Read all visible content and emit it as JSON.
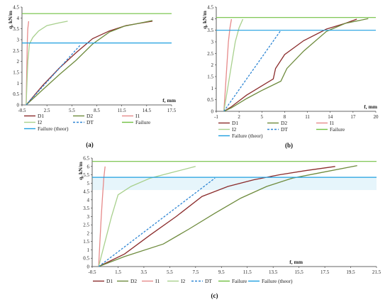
{
  "figure": {
    "panel_labels": [
      "(a)",
      "(b)",
      "(c)"
    ]
  },
  "colors": {
    "D1": "#8B2C2C",
    "D2": "#6E8B3D",
    "I1": "#E68A8A",
    "I2": "#A8D08D",
    "DT": "#2E86D4",
    "Failure": "#70C040",
    "Failure_theor": "#1E9FE0",
    "axis": "#333333",
    "band": "#D6EEF8"
  },
  "chart_data": [
    {
      "type": "line",
      "panel": "(a)",
      "ylabel": "q, kN/m",
      "xlabel": "f, mm",
      "xlim": [
        -0.5,
        17.5
      ],
      "ylim": [
        0,
        4.5
      ],
      "x_ticks": [
        "-0.5",
        "2.5",
        "5.5",
        "8.5",
        "11.5",
        "14.5",
        "17.5"
      ],
      "y_ticks": [
        "0",
        "0.5",
        "1",
        "1.5",
        "2",
        "2.5",
        "3",
        "3.5",
        "4",
        "4.5"
      ],
      "x_tick_values": [
        -0.5,
        2.5,
        5.5,
        8.5,
        11.5,
        14.5,
        17.5
      ],
      "y_tick_values": [
        0,
        0.5,
        1,
        1.5,
        2,
        2.5,
        3,
        3.5,
        4,
        4.5
      ],
      "legend_position": "bottom",
      "series": [
        {
          "name": "D1",
          "style": "solid",
          "x": [
            0,
            2,
            4,
            6,
            8,
            10,
            12,
            14,
            15.2
          ],
          "y": [
            0,
            0.9,
            1.7,
            2.4,
            3.05,
            3.4,
            3.65,
            3.78,
            3.85
          ]
        },
        {
          "name": "D2",
          "style": "solid",
          "x": [
            0,
            2,
            4,
            6,
            8,
            10,
            11.8,
            13.5,
            15.2
          ],
          "y": [
            0,
            0.7,
            1.4,
            2.05,
            2.8,
            3.35,
            3.62,
            3.75,
            3.88
          ]
        },
        {
          "name": "I1",
          "style": "solid",
          "x": [
            0,
            0.05,
            0.1,
            0.15,
            0.2,
            0.3
          ],
          "y": [
            0,
            1.0,
            2.0,
            3.0,
            3.5,
            3.85
          ]
        },
        {
          "name": "I2",
          "style": "solid",
          "x": [
            0,
            0.1,
            0.2,
            0.4,
            0.8,
            1.5,
            2.5,
            4.0,
            5.0
          ],
          "y": [
            0,
            1.0,
            2.0,
            2.8,
            3.1,
            3.4,
            3.65,
            3.78,
            3.85
          ]
        },
        {
          "name": "DT",
          "style": "dashed",
          "x": [
            0,
            6.5
          ],
          "y": [
            0,
            2.75
          ]
        },
        {
          "name": "Failure",
          "style": "solid",
          "x": [
            -0.5,
            17.5
          ],
          "y": [
            4.2,
            4.2
          ]
        },
        {
          "name": "Failure (theor)",
          "style": "solid",
          "x": [
            -0.5,
            17.5
          ],
          "y": [
            2.85,
            2.85
          ]
        }
      ],
      "legend_order": [
        "D1",
        "D2",
        "I1",
        "I2",
        "DT",
        "Failure",
        "Failure (theor)"
      ]
    },
    {
      "type": "line",
      "panel": "(b)",
      "ylabel": "q, kN/m",
      "xlabel": "f, mm",
      "xlim": [
        -1,
        20
      ],
      "ylim": [
        0,
        4.5
      ],
      "x_ticks": [
        "-1",
        "2",
        "5",
        "8",
        "11",
        "14",
        "17",
        "20"
      ],
      "y_ticks": [
        "0",
        "0.5",
        "1",
        "1.5",
        "2",
        "2.5",
        "3",
        "3.5",
        "4",
        "4.5"
      ],
      "x_tick_values": [
        -1,
        2,
        5,
        8,
        11,
        14,
        17,
        20
      ],
      "y_tick_values": [
        0,
        0.5,
        1,
        1.5,
        2,
        2.5,
        3,
        3.5,
        4,
        4.5
      ],
      "legend_position": "bottom",
      "series": [
        {
          "name": "D1",
          "style": "solid",
          "x": [
            0,
            1,
            3,
            5,
            6.5,
            6.8,
            8,
            10.5,
            13.5,
            16,
            17.5
          ],
          "y": [
            0,
            0.2,
            0.7,
            1.1,
            1.4,
            1.85,
            2.45,
            3.05,
            3.55,
            3.8,
            3.98
          ]
        },
        {
          "name": "D2",
          "style": "solid",
          "x": [
            0,
            1,
            3,
            5,
            7.5,
            8.3,
            10.5,
            13.5,
            16,
            19
          ],
          "y": [
            0,
            0.15,
            0.55,
            0.9,
            1.3,
            1.85,
            2.6,
            3.45,
            3.8,
            4.0
          ]
        },
        {
          "name": "I1",
          "style": "solid",
          "x": [
            0,
            0.2,
            0.4,
            0.6,
            0.8,
            1.0
          ],
          "y": [
            0,
            1.0,
            2.0,
            3.0,
            3.6,
            3.98
          ]
        },
        {
          "name": "I2",
          "style": "solid",
          "x": [
            0,
            0.5,
            1.0,
            1.5,
            2.0,
            2.5
          ],
          "y": [
            0,
            1.0,
            2.0,
            3.0,
            3.6,
            3.98
          ]
        },
        {
          "name": "DT",
          "style": "dashed",
          "x": [
            0,
            7.5
          ],
          "y": [
            0,
            3.5
          ]
        },
        {
          "name": "Failure",
          "style": "solid",
          "x": [
            -1,
            20
          ],
          "y": [
            4.05,
            4.05
          ]
        },
        {
          "name": "Failure (theor)",
          "style": "solid",
          "x": [
            -1,
            20
          ],
          "y": [
            3.5,
            3.5
          ]
        }
      ],
      "legend_order": [
        "D1",
        "D2",
        "I1",
        "I2",
        "DT",
        "Failure",
        "Failure (theor)"
      ]
    },
    {
      "type": "line",
      "panel": "(c)",
      "ylabel": "q, kN/m",
      "xlabel": "f, mm",
      "xlim": [
        -0.5,
        21.5
      ],
      "ylim": [
        0,
        6.5
      ],
      "x_ticks": [
        "-0.5",
        "1.5",
        "3.5",
        "5.5",
        "7.5",
        "9.5",
        "11.5",
        "13.5",
        "15.5",
        "17.5",
        "19.5",
        "21.5"
      ],
      "y_ticks": [
        "0",
        "0.5",
        "1",
        "1.5",
        "2",
        "2.5",
        "3",
        "3.5",
        "4",
        "4.5",
        "5",
        "5.5",
        "6",
        "6.5"
      ],
      "x_tick_values": [
        -0.5,
        1.5,
        3.5,
        5.5,
        7.5,
        9.5,
        11.5,
        13.5,
        15.5,
        17.5,
        19.5,
        21.5
      ],
      "y_tick_values": [
        0,
        0.5,
        1,
        1.5,
        2,
        2.5,
        3,
        3.5,
        4,
        4.5,
        5,
        5.5,
        6,
        6.5
      ],
      "legend_position": "bottom",
      "series": [
        {
          "name": "D1",
          "style": "solid",
          "x": [
            0,
            2,
            4,
            6,
            8,
            10,
            12,
            14,
            16,
            18.3
          ],
          "y": [
            0,
            0.75,
            1.9,
            3.0,
            4.2,
            4.8,
            5.2,
            5.5,
            5.75,
            6.0
          ]
        },
        {
          "name": "D2",
          "style": "solid",
          "x": [
            0,
            2,
            5,
            7,
            9,
            11,
            13,
            15,
            17,
            20
          ],
          "y": [
            0,
            0.6,
            1.35,
            2.25,
            3.2,
            4.1,
            4.8,
            5.3,
            5.6,
            6.05
          ]
        },
        {
          "name": "I1",
          "style": "solid",
          "x": [
            0,
            0.1,
            0.2,
            0.3,
            0.4,
            0.5
          ],
          "y": [
            0,
            1.5,
            3.0,
            4.2,
            5.3,
            6.0
          ]
        },
        {
          "name": "I2",
          "style": "solid",
          "x": [
            0,
            0.5,
            1.0,
            1.5,
            2.5,
            4.0,
            6.0,
            7.5
          ],
          "y": [
            0,
            1.5,
            3.0,
            4.3,
            4.8,
            5.3,
            5.7,
            6.0
          ]
        },
        {
          "name": "DT",
          "style": "dashed",
          "x": [
            0,
            9.0
          ],
          "y": [
            0,
            5.3
          ]
        },
        {
          "name": "Failure",
          "style": "solid",
          "x": [
            -0.5,
            21.5
          ],
          "y": [
            6.3,
            6.3
          ]
        },
        {
          "name": "Failure (theor)",
          "style": "solid",
          "x": [
            -0.5,
            21.5
          ],
          "y": [
            5.35,
            5.35
          ]
        }
      ],
      "legend_order": [
        "D1",
        "D2",
        "I1",
        "I2",
        "DT",
        "Failure",
        "Failure (theor)"
      ]
    }
  ]
}
